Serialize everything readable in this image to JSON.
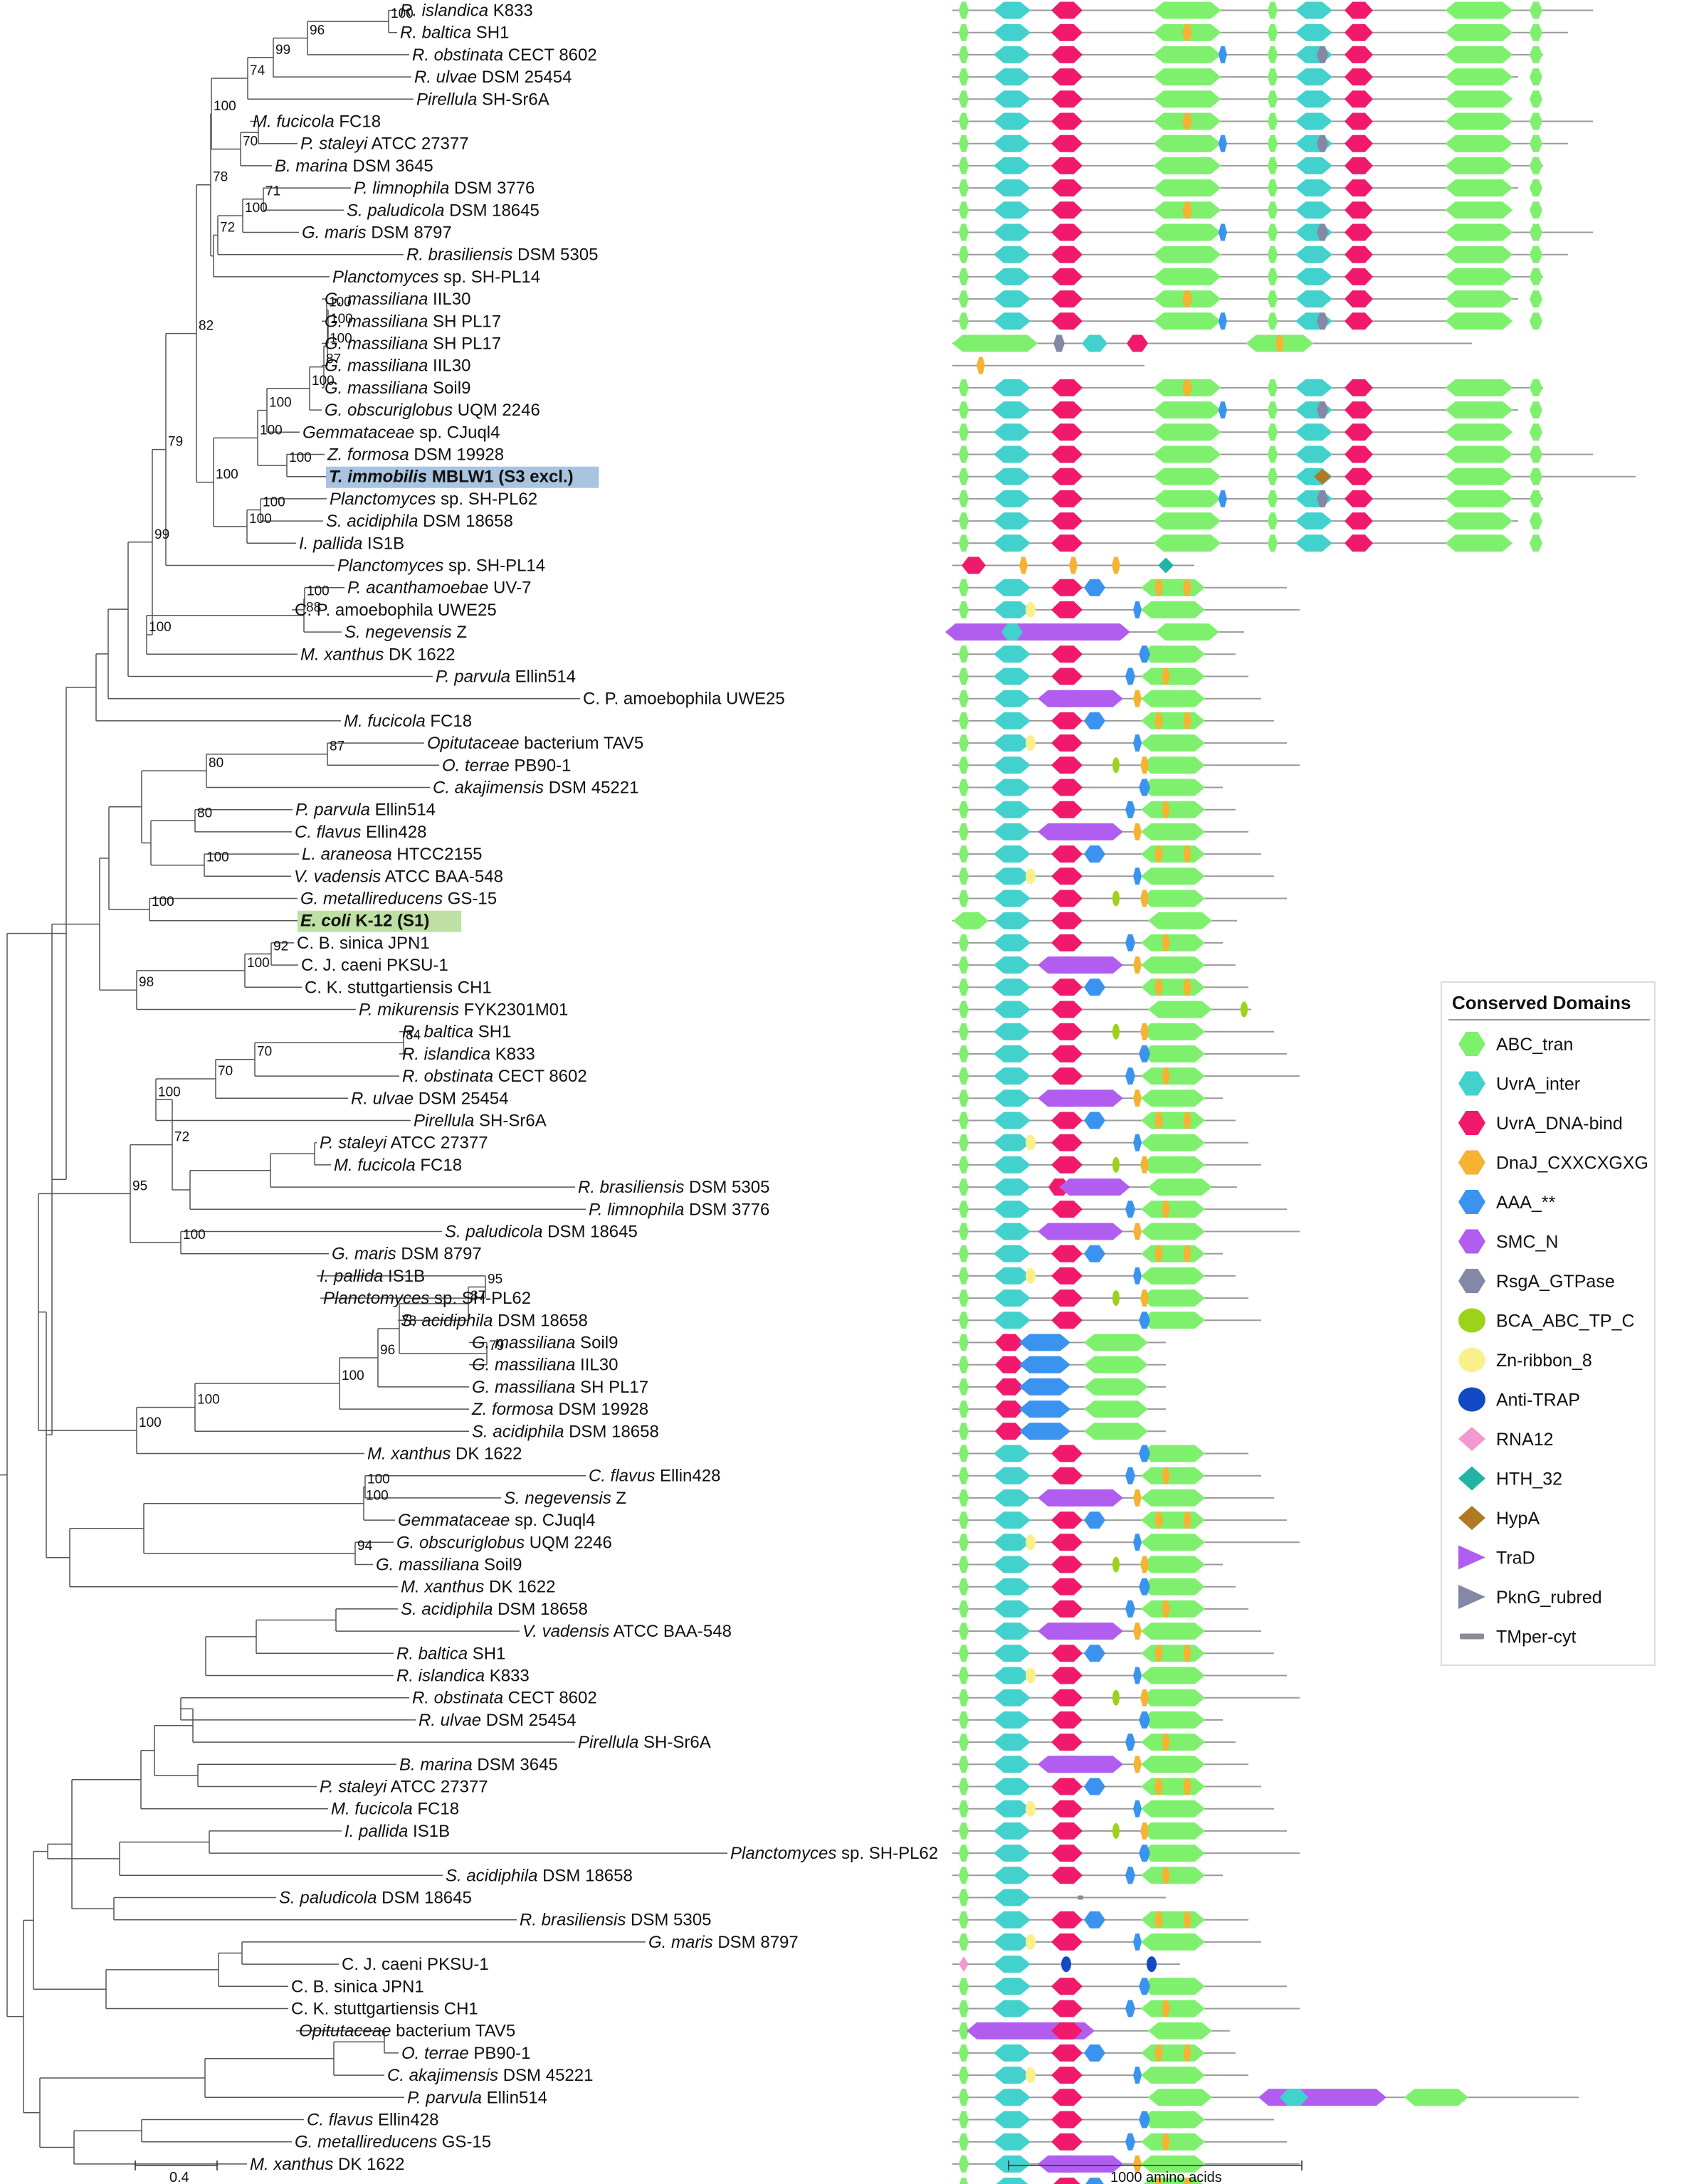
{
  "figure": {
    "tree_scale_label": "0.4",
    "domain_scale_label": "1000 amino acids",
    "legend_title": "Conserved Domains"
  },
  "legend": [
    {
      "name": "ABC_tran",
      "color": "#7ef06e",
      "shape": "hexagon"
    },
    {
      "name": "UvrA_inter",
      "color": "#42d1cc",
      "shape": "hexagon"
    },
    {
      "name": "UvrA_DNA-bind",
      "color": "#f0196b",
      "shape": "hexagon"
    },
    {
      "name": "DnaJ_CXXCXGXG",
      "color": "#f5b233",
      "shape": "octagon"
    },
    {
      "name": "AAA_**",
      "color": "#3a93ef",
      "shape": "hexagon"
    },
    {
      "name": "SMC_N",
      "color": "#b15ef0",
      "shape": "hexagon"
    },
    {
      "name": "RsgA_GTPase",
      "color": "#8587a7",
      "shape": "hexagon"
    },
    {
      "name": "BCA_ABC_TP_C",
      "color": "#9cd21a",
      "shape": "ellipse"
    },
    {
      "name": "Zn-ribbon_8",
      "color": "#f9f08c",
      "shape": "ellipse"
    },
    {
      "name": "Anti-TRAP",
      "color": "#1349c2",
      "shape": "ellipse"
    },
    {
      "name": "RNA12",
      "color": "#f29ad0",
      "shape": "diamond"
    },
    {
      "name": "HTH_32",
      "color": "#21b4a4",
      "shape": "diamond"
    },
    {
      "name": "HypA",
      "color": "#b07a25",
      "shape": "diamond"
    },
    {
      "name": "TraD",
      "color": "#b15ef0",
      "shape": "triangle"
    },
    {
      "name": "PknG_rubred",
      "color": "#8587a7",
      "shape": "triangle"
    },
    {
      "name": "TMper-cyt",
      "color": "#8a8d99",
      "shape": "bar"
    }
  ],
  "taxa": [
    {
      "genus": "R. islandica",
      "rest": " K833"
    },
    {
      "genus": "R. baltica",
      "rest": " SH1"
    },
    {
      "genus": "R. obstinata",
      "rest": " CECT 8602"
    },
    {
      "genus": "R. ulvae",
      "rest": " DSM 25454"
    },
    {
      "genus": "Pirellula",
      "rest": " SH-Sr6A"
    },
    {
      "genus": "M. fucicola",
      "rest": " FC18"
    },
    {
      "genus": "P. staleyi",
      "rest": " ATCC 27377"
    },
    {
      "genus": "B. marina",
      "rest": " DSM 3645"
    },
    {
      "genus": "P. limnophila",
      "rest": " DSM 3776"
    },
    {
      "genus": "S. paludicola",
      "rest": " DSM 18645"
    },
    {
      "genus": "G. maris",
      "rest": " DSM 8797"
    },
    {
      "genus": "R. brasiliensis",
      "rest": " DSM 5305"
    },
    {
      "genus": "Planctomyces",
      "rest": " sp. SH-PL14"
    },
    {
      "genus": "G. massiliana",
      "rest": " IIL30"
    },
    {
      "genus": "G. massiliana",
      "rest": " SH PL17"
    },
    {
      "genus": "G. massiliana",
      "rest": " SH PL17"
    },
    {
      "genus": "G. massiliana",
      "rest": " IIL30"
    },
    {
      "genus": "G. massiliana",
      "rest": " Soil9"
    },
    {
      "genus": "G. obscuriglobus",
      "rest": " UQM 2246"
    },
    {
      "genus": "Gemmataceae",
      "rest": " sp. CJuql4"
    },
    {
      "genus": "Z. formosa",
      "rest": " DSM 19928"
    },
    {
      "genus": "T. immobilis",
      "rest": " MBLW1 (S3 excl.)",
      "highlight": "blue"
    },
    {
      "genus": "Planctomyces",
      "rest": " sp. SH-PL62"
    },
    {
      "genus": "S. acidiphila",
      "rest": " DSM 18658"
    },
    {
      "genus": "I. pallida",
      "rest": " IS1B"
    },
    {
      "genus": "Planctomyces",
      "rest": " sp. SH-PL14"
    },
    {
      "genus": "P. acanthamoebae",
      "rest": " UV-7"
    },
    {
      "genus": "C. P. amoebophila",
      "rest": " UWE25",
      "plain": true
    },
    {
      "genus": "S. negevensis",
      "rest": " Z"
    },
    {
      "genus": "M. xanthus",
      "rest": " DK 1622"
    },
    {
      "genus": "P. parvula",
      "rest": " Ellin514"
    },
    {
      "genus": "C. P. amoebophila",
      "rest": " UWE25",
      "plain": true
    },
    {
      "genus": "M. fucicola",
      "rest": " FC18"
    },
    {
      "genus": "Opitutaceae",
      "rest": " bacterium TAV5"
    },
    {
      "genus": "O. terrae",
      "rest": " PB90-1"
    },
    {
      "genus": "C. akajimensis",
      "rest": " DSM 45221"
    },
    {
      "genus": "P. parvula",
      "rest": " Ellin514"
    },
    {
      "genus": "C. flavus",
      "rest": " Ellin428"
    },
    {
      "genus": "L. araneosa",
      "rest": " HTCC2155"
    },
    {
      "genus": "V. vadensis",
      "rest": " ATCC BAA-548"
    },
    {
      "genus": "G. metallireducens",
      "rest": " GS-15"
    },
    {
      "genus": "E. coli",
      "rest": " K-12 (S1)",
      "highlight": "green"
    },
    {
      "genus": "C. B. sinica",
      "rest": " JPN1",
      "plain": true
    },
    {
      "genus": "C. J. caeni",
      "rest": " PKSU-1",
      "plain": true
    },
    {
      "genus": "C. K. stuttgartiensis",
      "rest": " CH1",
      "plain": true
    },
    {
      "genus": "P. mikurensis",
      "rest": " FYK2301M01"
    },
    {
      "genus": "R. baltica",
      "rest": " SH1"
    },
    {
      "genus": "R. islandica",
      "rest": " K833"
    },
    {
      "genus": "R. obstinata",
      "rest": " CECT 8602"
    },
    {
      "genus": "R. ulvae",
      "rest": " DSM 25454"
    },
    {
      "genus": "Pirellula",
      "rest": " SH-Sr6A"
    },
    {
      "genus": "P. staleyi",
      "rest": " ATCC 27377"
    },
    {
      "genus": "M. fucicola",
      "rest": " FC18"
    },
    {
      "genus": "R. brasiliensis",
      "rest": " DSM 5305"
    },
    {
      "genus": "P. limnophila",
      "rest": " DSM 3776"
    },
    {
      "genus": "S. paludicola",
      "rest": " DSM 18645"
    },
    {
      "genus": "G. maris",
      "rest": " DSM 8797"
    },
    {
      "genus": "I. pallida",
      "rest": " IS1B"
    },
    {
      "genus": "Planctomyces",
      "rest": " sp. SH-PL62"
    },
    {
      "genus": "S. acidiphila",
      "rest": " DSM 18658"
    },
    {
      "genus": "G. massiliana",
      "rest": " Soil9"
    },
    {
      "genus": "G. massiliana",
      "rest": " IIL30"
    },
    {
      "genus": "G. massiliana",
      "rest": " SH PL17"
    },
    {
      "genus": "Z. formosa",
      "rest": " DSM 19928"
    },
    {
      "genus": "S. acidiphila",
      "rest": " DSM 18658"
    },
    {
      "genus": "M. xanthus",
      "rest": " DK 1622"
    },
    {
      "genus": "C. flavus",
      "rest": " Ellin428"
    },
    {
      "genus": "S. negevensis",
      "rest": " Z"
    },
    {
      "genus": "Gemmataceae",
      "rest": " sp. CJuql4"
    },
    {
      "genus": "G. obscuriglobus",
      "rest": " UQM 2246"
    },
    {
      "genus": "G. massiliana",
      "rest": " Soil9"
    },
    {
      "genus": "M. xanthus",
      "rest": " DK 1622"
    },
    {
      "genus": "S. acidiphila",
      "rest": " DSM 18658"
    },
    {
      "genus": "V. vadensis",
      "rest": " ATCC BAA-548"
    },
    {
      "genus": "R. baltica",
      "rest": " SH1"
    },
    {
      "genus": "R. islandica",
      "rest": " K833"
    },
    {
      "genus": "R. obstinata",
      "rest": " CECT 8602"
    },
    {
      "genus": "R. ulvae",
      "rest": " DSM 25454"
    },
    {
      "genus": "Pirellula",
      "rest": " SH-Sr6A"
    },
    {
      "genus": "B. marina",
      "rest": " DSM 3645"
    },
    {
      "genus": "P. staleyi",
      "rest": " ATCC 27377"
    },
    {
      "genus": "M. fucicola",
      "rest": " FC18"
    },
    {
      "genus": "I. pallida",
      "rest": " IS1B"
    },
    {
      "genus": "Planctomyces",
      "rest": " sp. SH-PL62"
    },
    {
      "genus": "S. acidiphila",
      "rest": " DSM 18658"
    },
    {
      "genus": "S. paludicola",
      "rest": " DSM 18645"
    },
    {
      "genus": "R. brasiliensis",
      "rest": " DSM 5305"
    },
    {
      "genus": "G. maris",
      "rest": " DSM 8797"
    },
    {
      "genus": "C. J. caeni",
      "rest": " PKSU-1",
      "plain": true
    },
    {
      "genus": "C. B. sinica",
      "rest": " JPN1",
      "plain": true
    },
    {
      "genus": "C. K. stuttgartiensis",
      "rest": " CH1",
      "plain": true
    },
    {
      "genus": "Opitutaceae",
      "rest": " bacterium TAV5"
    },
    {
      "genus": "O. terrae",
      "rest": " PB90-1"
    },
    {
      "genus": "C. akajimensis",
      "rest": " DSM 45221"
    },
    {
      "genus": "P. parvula",
      "rest": " Ellin514"
    },
    {
      "genus": "C. flavus",
      "rest": " Ellin428"
    },
    {
      "genus": "G. metallireducens",
      "rest": " GS-15"
    },
    {
      "genus": "M. xanthus",
      "rest": " DK 1622"
    }
  ],
  "bootstrap_values": [
    "100",
    "96",
    "99",
    "74",
    "70",
    "100",
    "71",
    "100",
    "72",
    "78",
    "100",
    "100",
    "100",
    "87",
    "100",
    "100",
    "100",
    "100",
    "100",
    "100",
    "100",
    "82",
    "79",
    "100",
    "88",
    "100",
    "99",
    "87",
    "80",
    "80",
    "100",
    "100",
    "92",
    "100",
    "98",
    "84",
    "70",
    "70",
    "100",
    "72",
    "100",
    "95",
    "95",
    "87",
    "79",
    "78",
    "96",
    "100",
    "100",
    "100",
    "100",
    "100",
    "94"
  ]
}
